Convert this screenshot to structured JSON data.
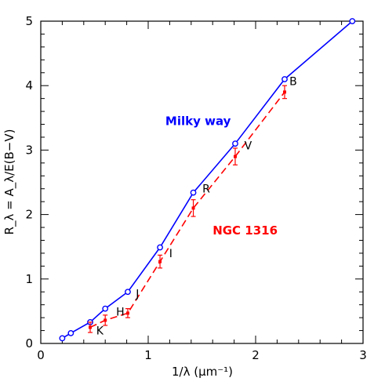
{
  "chart_data": {
    "type": "line",
    "xlabel": "1/λ (μm⁻¹)",
    "ylabel": "R_λ = A_λ/E(B−V)",
    "xlim": [
      0,
      3
    ],
    "ylim": [
      0,
      5
    ],
    "x_ticks": [
      "0",
      "1",
      "2",
      "3"
    ],
    "y_ticks": [
      "0",
      "1",
      "2",
      "3",
      "4",
      "5"
    ],
    "grid": false,
    "legend": "none",
    "series": [
      {
        "name": "Milky way",
        "color": "#0000ff",
        "line_style": "solid",
        "marker": "open-circle",
        "points": [
          {
            "x": 0.2,
            "y": 0.08
          },
          {
            "x": 0.28,
            "y": 0.16
          },
          {
            "x": 0.46,
            "y": 0.33
          },
          {
            "x": 0.6,
            "y": 0.54
          },
          {
            "x": 0.81,
            "y": 0.8
          },
          {
            "x": 1.11,
            "y": 1.49
          },
          {
            "x": 1.42,
            "y": 2.34
          },
          {
            "x": 1.81,
            "y": 3.1
          },
          {
            "x": 2.27,
            "y": 4.1
          },
          {
            "x": 2.9,
            "y": 5.0
          }
        ]
      },
      {
        "name": "NGC 1316",
        "color": "#ff0000",
        "line_style": "dashed",
        "marker": "filled-square",
        "points": [
          {
            "x": 0.46,
            "y": 0.25,
            "err": 0.08
          },
          {
            "x": 0.6,
            "y": 0.36,
            "err": 0.08
          },
          {
            "x": 0.81,
            "y": 0.47,
            "err": 0.07
          },
          {
            "x": 1.11,
            "y": 1.27,
            "err": 0.1
          },
          {
            "x": 1.42,
            "y": 2.1,
            "err": 0.13
          },
          {
            "x": 1.81,
            "y": 2.9,
            "err": 0.13
          },
          {
            "x": 2.27,
            "y": 3.9,
            "err": 0.1
          }
        ]
      }
    ],
    "band_labels": [
      {
        "text": "K",
        "x": 0.55,
        "y": 0.2
      },
      {
        "text": "H",
        "x": 0.74,
        "y": 0.49
      },
      {
        "text": "J",
        "x": 0.9,
        "y": 0.77
      },
      {
        "text": "I",
        "x": 1.21,
        "y": 1.4
      },
      {
        "text": "R",
        "x": 1.54,
        "y": 2.4
      },
      {
        "text": "V",
        "x": 1.93,
        "y": 3.07
      },
      {
        "text": "B",
        "x": 2.35,
        "y": 4.07
      }
    ],
    "series_labels": [
      {
        "text": "Milky way",
        "x": 1.16,
        "y": 3.45,
        "color": "#0000ff"
      },
      {
        "text": "NGC 1316",
        "x": 1.6,
        "y": 1.75,
        "color": "#ff0000"
      }
    ]
  }
}
